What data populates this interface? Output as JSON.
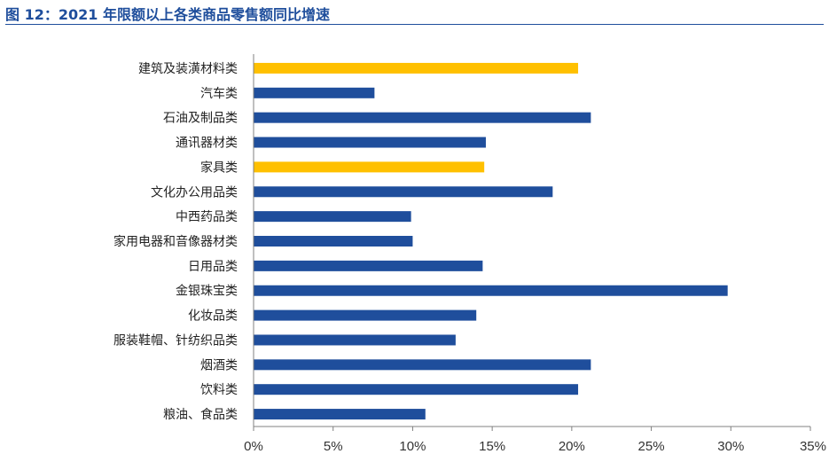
{
  "header": {
    "title": "图 12：2021 年限额以上各类商品零售额同比增速"
  },
  "chart_data": {
    "type": "bar",
    "orientation": "horizontal",
    "title": "图 12：2021 年限额以上各类商品零售额同比增速",
    "xlabel": "",
    "ylabel": "",
    "xlim": [
      0,
      35
    ],
    "ticks": [
      0,
      5,
      10,
      15,
      20,
      25,
      30,
      35
    ],
    "tick_labels": [
      "0%",
      "5%",
      "10%",
      "15%",
      "20%",
      "25%",
      "30%",
      "35%"
    ],
    "grid": false,
    "legend": "none",
    "colors": {
      "default": "#1f4e9c",
      "highlight": "#ffc000"
    },
    "categories": [
      "建筑及装潢材料类",
      "汽车类",
      "石油及制品类",
      "通讯器材类",
      "家具类",
      "文化办公用品类",
      "中西药品类",
      "家用电器和音像器材类",
      "日用品类",
      "金银珠宝类",
      "化妆品类",
      "服装鞋帽、针纺织品类",
      "烟酒类",
      "饮料类",
      "粮油、食品类"
    ],
    "values": [
      20.4,
      7.6,
      21.2,
      14.6,
      14.5,
      18.8,
      9.9,
      10.0,
      14.4,
      29.8,
      14.0,
      12.7,
      21.2,
      20.4,
      10.8
    ],
    "highlight": [
      true,
      false,
      false,
      false,
      true,
      false,
      false,
      false,
      false,
      false,
      false,
      false,
      false,
      false,
      false
    ]
  }
}
